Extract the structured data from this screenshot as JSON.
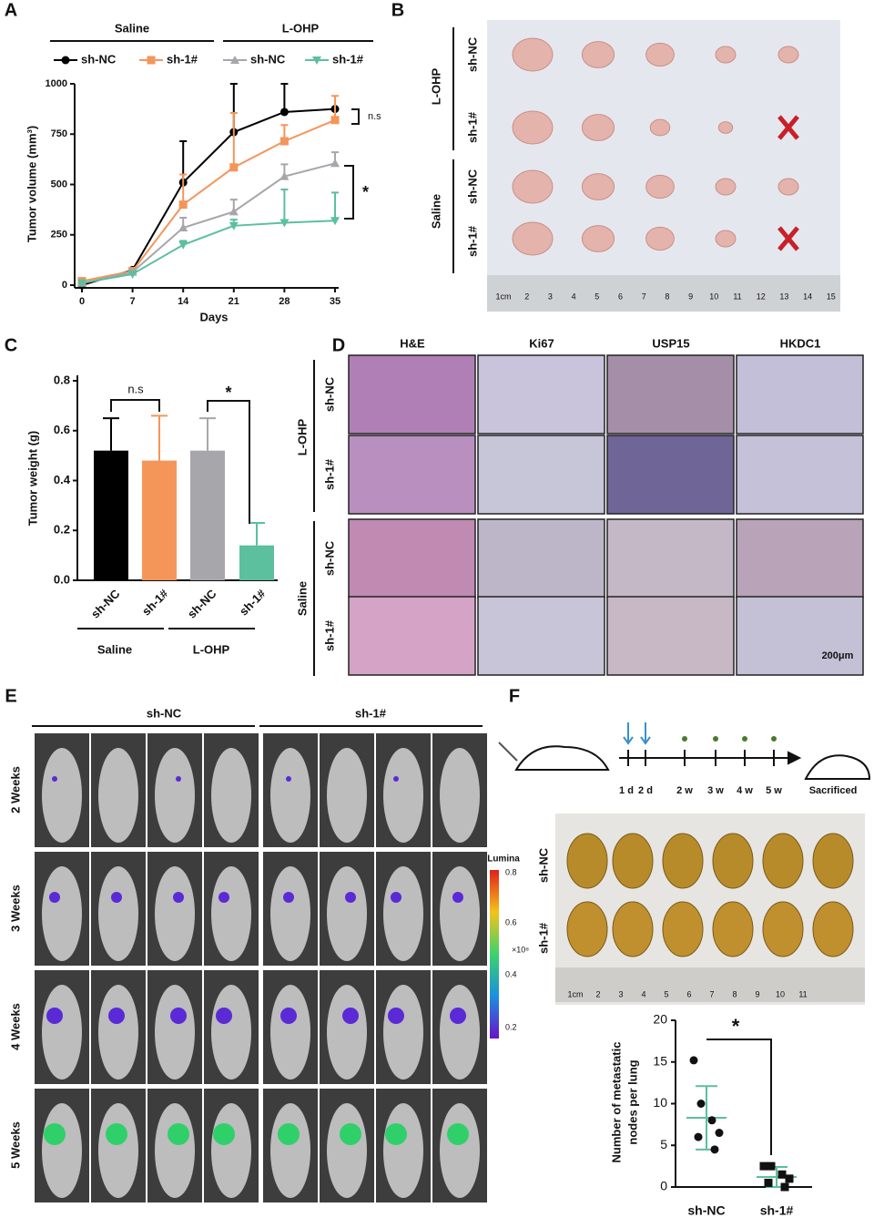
{
  "panels": [
    "A",
    "B",
    "C",
    "D",
    "E",
    "F"
  ],
  "chart_data": [
    {
      "type": "line",
      "group_labels": [
        "Saline",
        "L-OHP"
      ],
      "x": [
        0,
        7,
        14,
        21,
        28,
        35
      ],
      "xlabel": "Days",
      "ylabel": "Tumor volume (mm³)",
      "xlim": [
        0,
        35
      ],
      "ylim": [
        0,
        1000
      ],
      "xticks": [
        0,
        7,
        14,
        21,
        28,
        35
      ],
      "yticks": [
        0,
        250,
        500,
        750,
        1000
      ],
      "series": [
        {
          "name": "sh-NC",
          "color": "#000000",
          "marker": "circle",
          "values": [
            0,
            75,
            510,
            760,
            860,
            875
          ],
          "errors": [
            0,
            10,
            205,
            240,
            140,
            0
          ]
        },
        {
          "name": "sh-1#",
          "color": "#f4955a",
          "marker": "square",
          "values": [
            20,
            70,
            400,
            585,
            715,
            820
          ],
          "errors": [
            0,
            10,
            150,
            270,
            80,
            120
          ]
        },
        {
          "name": "sh-NC",
          "color": "#a6a6ab",
          "marker": "triangle",
          "values": [
            10,
            65,
            285,
            365,
            540,
            605
          ],
          "errors": [
            0,
            10,
            50,
            60,
            60,
            55
          ]
        },
        {
          "name": "sh-1#",
          "color": "#5cbf9e",
          "marker": "triangle-down",
          "values": [
            10,
            55,
            200,
            295,
            310,
            320
          ],
          "errors": [
            0,
            10,
            20,
            30,
            165,
            140
          ]
        }
      ],
      "annotations": [
        "n.s",
        "*"
      ]
    },
    {
      "type": "bar",
      "categories": [
        "sh-NC",
        "sh-1#",
        "sh-NC",
        "sh-1#"
      ],
      "group_labels": [
        "Saline",
        "L-OHP"
      ],
      "values": [
        0.52,
        0.48,
        0.52,
        0.14
      ],
      "errors": [
        0.13,
        0.18,
        0.13,
        0.09
      ],
      "colors": [
        "#000000",
        "#f4955a",
        "#a6a6ab",
        "#5cbf9e"
      ],
      "ylabel": "Tumor weight (g)",
      "ylim": [
        0,
        0.8
      ],
      "yticks": [
        {
          "value": 0,
          "label": "0.0"
        },
        0.2,
        0.4,
        0.6,
        0.8
      ],
      "annotations": [
        "n.s",
        "*"
      ]
    },
    {
      "type": "strip",
      "categories": [
        "sh-NC",
        "sh-1#"
      ],
      "points": [
        [
          15.2,
          10,
          8,
          6.5,
          6,
          4.5
        ],
        [
          2.5,
          2.5,
          1.5,
          1,
          0.5,
          0
        ]
      ],
      "means": [
        8.3,
        1.2
      ],
      "errors": [
        3.8,
        1.2
      ],
      "mean_color": "#5cbf9e",
      "ylabel": [
        "Number of metastatic",
        "nodes per lung"
      ],
      "ylim": [
        0,
        20
      ],
      "yticks": [
        0,
        5,
        10,
        15,
        20
      ],
      "annotations": [
        "*"
      ]
    }
  ],
  "panel_b": {
    "groups": [
      "L-OHP",
      "Saline"
    ],
    "rows": [
      "sh-NC",
      "sh-1#",
      "sh-NC",
      "sh-1#"
    ],
    "ruler": [
      "1cm",
      "2",
      "3",
      "4",
      "5",
      "6",
      "7",
      "8",
      "9",
      "10",
      "11",
      "12",
      "13",
      "14",
      "15"
    ]
  },
  "panel_d": {
    "columns": [
      "H&E",
      "Ki67",
      "USP15",
      "HKDC1"
    ],
    "groups": [
      "L-OHP",
      "Saline"
    ],
    "rows": [
      "sh-NC",
      "sh-1#",
      "sh-NC",
      "sh-1#"
    ],
    "scale_bar": "200μm"
  },
  "panel_e": {
    "groups": [
      "sh-NC",
      "sh-1#"
    ],
    "rows": [
      "2 Weeks",
      "3 Weeks",
      "4 Weeks",
      "5 Weeks"
    ],
    "colorbar": {
      "title": "Lumina",
      "ticks": [
        "0.8",
        "0.6",
        "0.4",
        "0.2"
      ],
      "unit": "×10⁸"
    }
  },
  "panel_f": {
    "timeline": [
      "1 d",
      "2 d",
      "2 w",
      "3 w",
      "4 w",
      "5 w"
    ],
    "end_label": "Sacrificed",
    "rows": [
      "sh-NC",
      "sh-1#"
    ],
    "ruler": [
      "1cm",
      "2",
      "3",
      "4",
      "5",
      "6",
      "7",
      "8",
      "9",
      "10",
      "11"
    ]
  }
}
